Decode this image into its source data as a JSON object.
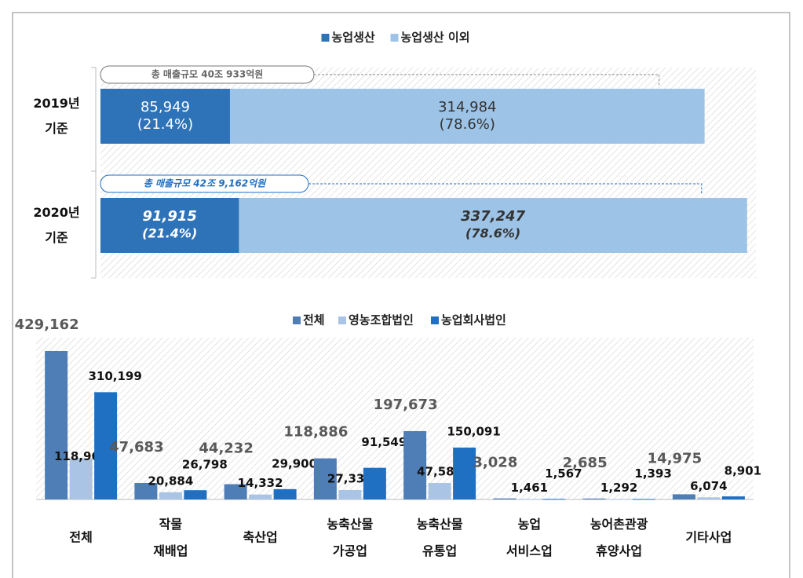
{
  "chart_data": [
    {
      "type": "stacked-hbar",
      "categories": [
        "2019년\n기준",
        "2020년\n기준"
      ],
      "series": [
        {
          "name": "농업생산",
          "color": "#2e72b8",
          "values": [
            85949,
            91915
          ],
          "value_labels": [
            "85,949",
            "91,915"
          ],
          "shares": [
            21.4,
            21.4
          ],
          "share_labels": [
            "(21.4%)",
            "(21.4%)"
          ]
        },
        {
          "name": "농업생산 이외",
          "color": "#9dc3e6",
          "values": [
            314984,
            337247
          ],
          "value_labels": [
            "314,984",
            "337,247"
          ],
          "shares": [
            78.6,
            78.6
          ],
          "share_labels": [
            "(78.6%)",
            "(78.6%)"
          ]
        }
      ],
      "annotations": [
        "총 매출규모 40조 933억원",
        "총 매출규모 42조 9,162억원"
      ],
      "label_style": [
        "normal",
        "bold-italic"
      ],
      "xlim": [
        0,
        435000
      ]
    },
    {
      "type": "grouped-bar",
      "categories": [
        "전체",
        "작물\n재배업",
        "축산업",
        "농축산물\n가공업",
        "농축산물\n유통업",
        "농업\n서비스업",
        "농어촌관광\n휴양사업",
        "기타사업"
      ],
      "series": [
        {
          "name": "전체",
          "color": "#4f7db5",
          "values": [
            429162,
            47683,
            44232,
            118886,
            197673,
            3028,
            2685,
            14975
          ],
          "value_labels": [
            "429,162",
            "47,683",
            "44,232",
            "118,886",
            "197,673",
            "3,028",
            "2,685",
            "14,975"
          ]
        },
        {
          "name": "영농조합법인",
          "color": "#a9c4e4",
          "values": [
            118963,
            20884,
            14332,
            27338,
            47582,
            1461,
            1292,
            6074
          ],
          "value_labels": [
            "118,963",
            "20,884",
            "14,332",
            "27,338",
            "47,582",
            "1,461",
            "1,292",
            "6,074"
          ]
        },
        {
          "name": "농업회사법인",
          "color": "#1f6fc3",
          "values": [
            310199,
            26798,
            29900,
            91549,
            150091,
            1567,
            1393,
            8901
          ],
          "value_labels": [
            "310,199",
            "26,798",
            "29,900",
            "91,549",
            "150,091",
            "1,567",
            "1,393",
            "8,901"
          ]
        }
      ],
      "ylim": [
        0,
        430000
      ]
    }
  ]
}
